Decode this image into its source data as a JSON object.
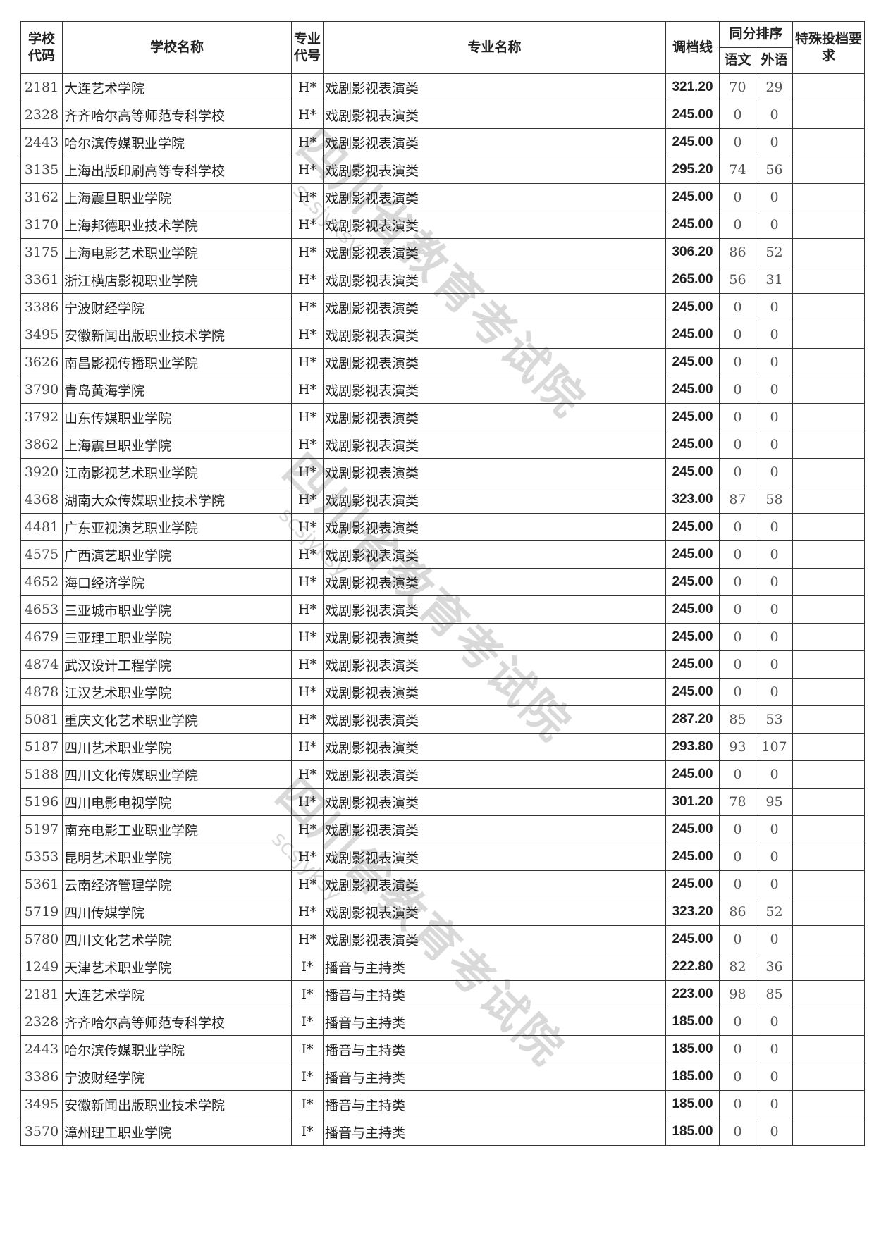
{
  "header": {
    "school_code": "学校代码",
    "school_name": "学校名称",
    "major_code": "专业代号",
    "major_name": "专业名称",
    "cutoff": "调档线",
    "tie_order": "同分排序",
    "chinese": "语文",
    "foreign": "外语",
    "special": "特殊投档要求"
  },
  "watermark": {
    "text": "四川省教育考试院",
    "sub": "scsjyksy"
  },
  "rows": [
    [
      "2181",
      "大连艺术学院",
      "H*",
      "戏剧影视表演类",
      "321.20",
      "70",
      "29"
    ],
    [
      "2328",
      "齐齐哈尔高等师范专科学校",
      "H*",
      "戏剧影视表演类",
      "245.00",
      "0",
      "0"
    ],
    [
      "2443",
      "哈尔滨传媒职业学院",
      "H*",
      "戏剧影视表演类",
      "245.00",
      "0",
      "0"
    ],
    [
      "3135",
      "上海出版印刷高等专科学校",
      "H*",
      "戏剧影视表演类",
      "295.20",
      "74",
      "56"
    ],
    [
      "3162",
      "上海震旦职业学院",
      "H*",
      "戏剧影视表演类",
      "245.00",
      "0",
      "0"
    ],
    [
      "3170",
      "上海邦德职业技术学院",
      "H*",
      "戏剧影视表演类",
      "245.00",
      "0",
      "0"
    ],
    [
      "3175",
      "上海电影艺术职业学院",
      "H*",
      "戏剧影视表演类",
      "306.20",
      "86",
      "52"
    ],
    [
      "3361",
      "浙江横店影视职业学院",
      "H*",
      "戏剧影视表演类",
      "265.00",
      "56",
      "31"
    ],
    [
      "3386",
      "宁波财经学院",
      "H*",
      "戏剧影视表演类",
      "245.00",
      "0",
      "0"
    ],
    [
      "3495",
      "安徽新闻出版职业技术学院",
      "H*",
      "戏剧影视表演类",
      "245.00",
      "0",
      "0"
    ],
    [
      "3626",
      "南昌影视传播职业学院",
      "H*",
      "戏剧影视表演类",
      "245.00",
      "0",
      "0"
    ],
    [
      "3790",
      "青岛黄海学院",
      "H*",
      "戏剧影视表演类",
      "245.00",
      "0",
      "0"
    ],
    [
      "3792",
      "山东传媒职业学院",
      "H*",
      "戏剧影视表演类",
      "245.00",
      "0",
      "0"
    ],
    [
      "3862",
      "上海震旦职业学院",
      "H*",
      "戏剧影视表演类",
      "245.00",
      "0",
      "0"
    ],
    [
      "3920",
      "江南影视艺术职业学院",
      "H*",
      "戏剧影视表演类",
      "245.00",
      "0",
      "0"
    ],
    [
      "4368",
      "湖南大众传媒职业技术学院",
      "H*",
      "戏剧影视表演类",
      "323.00",
      "87",
      "58"
    ],
    [
      "4481",
      "广东亚视演艺职业学院",
      "H*",
      "戏剧影视表演类",
      "245.00",
      "0",
      "0"
    ],
    [
      "4575",
      "广西演艺职业学院",
      "H*",
      "戏剧影视表演类",
      "245.00",
      "0",
      "0"
    ],
    [
      "4652",
      "海口经济学院",
      "H*",
      "戏剧影视表演类",
      "245.00",
      "0",
      "0"
    ],
    [
      "4653",
      "三亚城市职业学院",
      "H*",
      "戏剧影视表演类",
      "245.00",
      "0",
      "0"
    ],
    [
      "4679",
      "三亚理工职业学院",
      "H*",
      "戏剧影视表演类",
      "245.00",
      "0",
      "0"
    ],
    [
      "4874",
      "武汉设计工程学院",
      "H*",
      "戏剧影视表演类",
      "245.00",
      "0",
      "0"
    ],
    [
      "4878",
      "江汉艺术职业学院",
      "H*",
      "戏剧影视表演类",
      "245.00",
      "0",
      "0"
    ],
    [
      "5081",
      "重庆文化艺术职业学院",
      "H*",
      "戏剧影视表演类",
      "287.20",
      "85",
      "53"
    ],
    [
      "5187",
      "四川艺术职业学院",
      "H*",
      "戏剧影视表演类",
      "293.80",
      "93",
      "107"
    ],
    [
      "5188",
      "四川文化传媒职业学院",
      "H*",
      "戏剧影视表演类",
      "245.00",
      "0",
      "0"
    ],
    [
      "5196",
      "四川电影电视学院",
      "H*",
      "戏剧影视表演类",
      "301.20",
      "78",
      "95"
    ],
    [
      "5197",
      "南充电影工业职业学院",
      "H*",
      "戏剧影视表演类",
      "245.00",
      "0",
      "0"
    ],
    [
      "5353",
      "昆明艺术职业学院",
      "H*",
      "戏剧影视表演类",
      "245.00",
      "0",
      "0"
    ],
    [
      "5361",
      "云南经济管理学院",
      "H*",
      "戏剧影视表演类",
      "245.00",
      "0",
      "0"
    ],
    [
      "5719",
      "四川传媒学院",
      "H*",
      "戏剧影视表演类",
      "323.20",
      "86",
      "52"
    ],
    [
      "5780",
      "四川文化艺术学院",
      "H*",
      "戏剧影视表演类",
      "245.00",
      "0",
      "0"
    ],
    [
      "1249",
      "天津艺术职业学院",
      "I*",
      "播音与主持类",
      "222.80",
      "82",
      "36"
    ],
    [
      "2181",
      "大连艺术学院",
      "I*",
      "播音与主持类",
      "223.00",
      "98",
      "85"
    ],
    [
      "2328",
      "齐齐哈尔高等师范专科学校",
      "I*",
      "播音与主持类",
      "185.00",
      "0",
      "0"
    ],
    [
      "2443",
      "哈尔滨传媒职业学院",
      "I*",
      "播音与主持类",
      "185.00",
      "0",
      "0"
    ],
    [
      "3386",
      "宁波财经学院",
      "I*",
      "播音与主持类",
      "185.00",
      "0",
      "0"
    ],
    [
      "3495",
      "安徽新闻出版职业技术学院",
      "I*",
      "播音与主持类",
      "185.00",
      "0",
      "0"
    ],
    [
      "3570",
      "漳州理工职业学院",
      "I*",
      "播音与主持类",
      "185.00",
      "0",
      "0"
    ]
  ]
}
